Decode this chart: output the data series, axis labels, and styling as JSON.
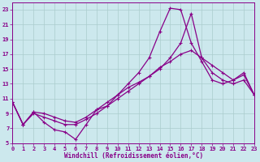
{
  "xlabel": "Windchill (Refroidissement éolien,°C)",
  "background_color": "#cce8ed",
  "grid_color": "#aacccc",
  "line_color": "#880088",
  "xlim": [
    0,
    23
  ],
  "ylim": [
    5,
    24
  ],
  "xticks": [
    0,
    1,
    2,
    3,
    4,
    5,
    6,
    7,
    8,
    9,
    10,
    11,
    12,
    13,
    14,
    15,
    16,
    17,
    18,
    19,
    20,
    21,
    22,
    23
  ],
  "yticks": [
    5,
    7,
    9,
    11,
    13,
    15,
    17,
    19,
    21,
    23
  ],
  "line_a_x": [
    0,
    1,
    2,
    3,
    4,
    5,
    6,
    7,
    8,
    9,
    10,
    11,
    12,
    13,
    14,
    15,
    16,
    17,
    18,
    19,
    20,
    21,
    22,
    23
  ],
  "line_a_y": [
    10.5,
    7.5,
    9.2,
    7.8,
    6.8,
    6.5,
    5.5,
    7.5,
    9.5,
    10.0,
    11.5,
    13.0,
    14.5,
    16.5,
    20.0,
    23.2,
    23.0,
    18.5,
    16.0,
    13.5,
    13.0,
    13.5,
    14.5,
    11.5
  ],
  "line_b_x": [
    0,
    1,
    2,
    3,
    4,
    5,
    6,
    7,
    8,
    9,
    10,
    11,
    12,
    13,
    14,
    15,
    16,
    17,
    18,
    19,
    20,
    21,
    22,
    23
  ],
  "line_b_y": [
    10.5,
    7.5,
    9.2,
    9.0,
    8.5,
    8.0,
    7.8,
    8.5,
    9.5,
    10.5,
    11.5,
    12.5,
    13.2,
    14.0,
    15.2,
    16.0,
    17.0,
    17.5,
    16.5,
    15.5,
    14.5,
    13.5,
    14.2,
    11.5
  ],
  "line_c_x": [
    0,
    1,
    2,
    3,
    4,
    5,
    6,
    7,
    8,
    9,
    10,
    11,
    12,
    13,
    14,
    15,
    16,
    17,
    18,
    19,
    20,
    21,
    22,
    23
  ],
  "line_c_y": [
    10.5,
    7.5,
    9.0,
    8.5,
    8.0,
    7.5,
    7.5,
    8.2,
    9.0,
    10.0,
    11.0,
    12.0,
    13.0,
    14.0,
    15.0,
    16.5,
    18.5,
    22.5,
    16.5,
    14.5,
    13.5,
    13.0,
    13.5,
    11.5
  ]
}
